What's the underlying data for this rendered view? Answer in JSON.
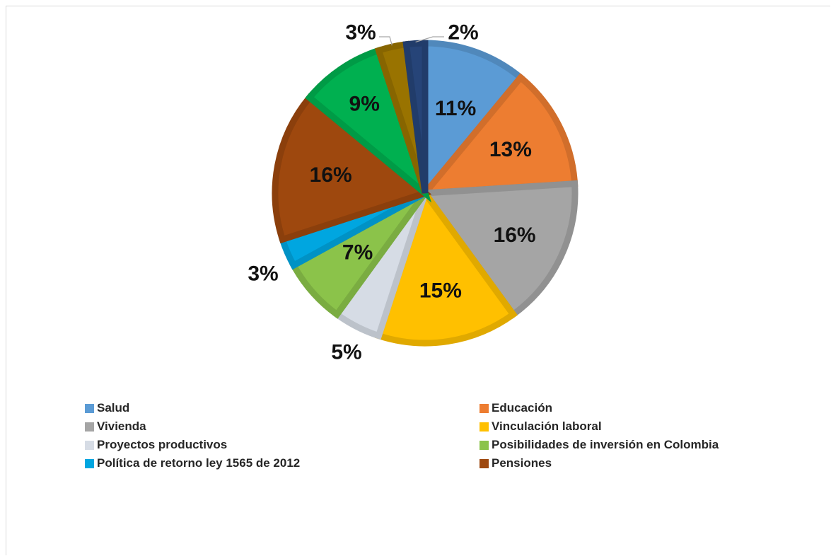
{
  "chart_data": {
    "type": "pie",
    "title": "",
    "start_angle_deg": 0,
    "direction": "clockwise",
    "slices": [
      {
        "label": "Salud",
        "value": 11,
        "display": "11%",
        "color": "#5B9BD5"
      },
      {
        "label": "Educación",
        "value": 13,
        "display": "13%",
        "color": "#ED7D31"
      },
      {
        "label": "Vivienda",
        "value": 16,
        "display": "16%",
        "color": "#A5A5A5"
      },
      {
        "label": "Vinculación laboral",
        "value": 15,
        "display": "15%",
        "color": "#FFC000"
      },
      {
        "label": "Proyectos productivos",
        "value": 5,
        "display": "5%",
        "color": "#D6DCE5"
      },
      {
        "label": "Posibilidades de inversión en Colombia",
        "value": 7,
        "display": "7%",
        "color": "#8BC34A"
      },
      {
        "label": "Política de retorno ley 1565 de 2012",
        "value": 3,
        "display": "3%",
        "color": "#00A6E0"
      },
      {
        "label": "Pensiones",
        "value": 16,
        "display": "16%",
        "color": "#9E480E"
      },
      {
        "label": "",
        "value": 9,
        "display": "9%",
        "color": "#00B050"
      },
      {
        "label": "",
        "value": 3,
        "display": "3%",
        "color": "#997300"
      },
      {
        "label": "",
        "value": 2,
        "display": "2%",
        "color": "#264478"
      }
    ],
    "legend": {
      "position": "bottom",
      "entries": [
        {
          "label": "Salud",
          "color": "#5B9BD5"
        },
        {
          "label": "Educación",
          "color": "#ED7D31"
        },
        {
          "label": "Vivienda",
          "color": "#A5A5A5"
        },
        {
          "label": "Vinculación laboral",
          "color": "#FFC000"
        },
        {
          "label": "Proyectos productivos",
          "color": "#D6DCE5"
        },
        {
          "label": "Posibilidades de inversión en Colombia",
          "color": "#8BC34A"
        },
        {
          "label": "Política de retorno ley 1565 de 2012",
          "color": "#00A6E0"
        },
        {
          "label": "Pensiones",
          "color": "#9E480E"
        }
      ]
    }
  }
}
